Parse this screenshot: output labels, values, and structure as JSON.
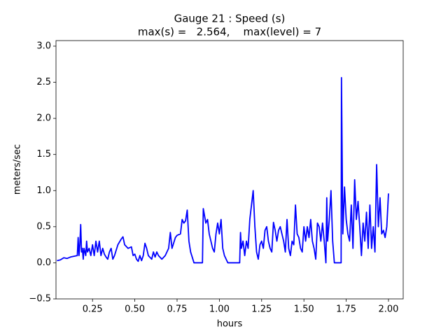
{
  "chart_data": {
    "type": "line",
    "title": "Gauge 21 : Speed (s)",
    "subtitle": "max(s) =   2.564,    max(level) = 7",
    "x_label": "hours",
    "y_label": "meters/sec",
    "color": "#0000ff",
    "xlim": [
      0.034,
      2.087
    ],
    "ylim": [
      -0.5,
      3.077
    ],
    "xticks": [
      0.25,
      {
        "value": 0.5,
        "label": "0.50"
      },
      0.75,
      {
        "value": 1.0,
        "label": "1.00"
      },
      1.25,
      {
        "value": 1.5,
        "label": "1.50"
      },
      1.75,
      {
        "value": 2.0,
        "label": "2.00"
      }
    ],
    "yticks": [
      {
        "value": -0.5,
        "label": "−0.5"
      },
      {
        "value": 0,
        "label": "0.0"
      },
      0.5,
      {
        "value": 1,
        "label": "1.0"
      },
      1.5,
      {
        "value": 2,
        "label": "2.0"
      },
      2.5,
      {
        "value": 3,
        "label": "3.0"
      }
    ],
    "x": [
      0.04,
      0.06,
      0.08,
      0.1,
      0.12,
      0.14,
      0.16,
      0.165,
      0.17,
      0.175,
      0.18,
      0.185,
      0.19,
      0.195,
      0.2,
      0.21,
      0.215,
      0.22,
      0.23,
      0.24,
      0.25,
      0.26,
      0.27,
      0.28,
      0.29,
      0.3,
      0.31,
      0.32,
      0.33,
      0.34,
      0.35,
      0.36,
      0.37,
      0.38,
      0.4,
      0.42,
      0.43,
      0.44,
      0.46,
      0.48,
      0.49,
      0.5,
      0.51,
      0.52,
      0.53,
      0.54,
      0.55,
      0.56,
      0.57,
      0.58,
      0.6,
      0.61,
      0.62,
      0.63,
      0.64,
      0.66,
      0.68,
      0.7,
      0.71,
      0.72,
      0.74,
      0.75,
      0.77,
      0.78,
      0.79,
      0.8,
      0.81,
      0.82,
      0.83,
      0.85,
      0.9,
      0.905,
      0.92,
      0.93,
      0.94,
      0.96,
      0.97,
      0.98,
      0.99,
      1.0,
      1.01,
      1.02,
      1.03,
      1.05,
      1.12,
      1.125,
      1.13,
      1.14,
      1.15,
      1.16,
      1.17,
      1.18,
      1.19,
      1.2,
      1.21,
      1.22,
      1.23,
      1.24,
      1.25,
      1.26,
      1.27,
      1.28,
      1.29,
      1.3,
      1.31,
      1.32,
      1.33,
      1.34,
      1.35,
      1.36,
      1.37,
      1.38,
      1.39,
      1.4,
      1.41,
      1.42,
      1.43,
      1.44,
      1.45,
      1.46,
      1.47,
      1.48,
      1.49,
      1.5,
      1.51,
      1.52,
      1.53,
      1.54,
      1.55,
      1.56,
      1.57,
      1.58,
      1.59,
      1.6,
      1.61,
      1.62,
      1.63,
      1.635,
      1.64,
      1.65,
      1.66,
      1.67,
      1.68,
      1.72,
      1.722,
      1.73,
      1.74,
      1.75,
      1.76,
      1.77,
      1.78,
      1.79,
      1.8,
      1.81,
      1.82,
      1.83,
      1.84,
      1.85,
      1.86,
      1.87,
      1.88,
      1.89,
      1.9,
      1.91,
      1.92,
      1.93,
      1.94,
      1.95,
      1.96,
      1.97,
      1.98,
      1.99,
      2.0
    ],
    "values": [
      0.03,
      0.04,
      0.07,
      0.06,
      0.08,
      0.09,
      0.1,
      0.35,
      0.1,
      0.25,
      0.53,
      0.15,
      0.2,
      0.05,
      0.2,
      0.1,
      0.3,
      0.15,
      0.2,
      0.1,
      0.25,
      0.1,
      0.3,
      0.15,
      0.3,
      0.1,
      0.2,
      0.12,
      0.08,
      0.05,
      0.15,
      0.2,
      0.05,
      0.1,
      0.25,
      0.33,
      0.36,
      0.25,
      0.2,
      0.22,
      0.1,
      0.12,
      0.05,
      0.02,
      0.1,
      0.03,
      0.1,
      0.27,
      0.2,
      0.1,
      0.05,
      0.15,
      0.08,
      0.15,
      0.1,
      0.05,
      0.1,
      0.2,
      0.42,
      0.2,
      0.35,
      0.38,
      0.4,
      0.6,
      0.55,
      0.58,
      0.73,
      0.3,
      0.15,
      0,
      0,
      0.75,
      0.55,
      0.6,
      0.4,
      0.2,
      0.15,
      0.4,
      0.55,
      0.4,
      0.6,
      0.2,
      0.1,
      0,
      0,
      0.42,
      0.2,
      0.3,
      0.1,
      0.3,
      0.2,
      0.6,
      0.8,
      1.0,
      0.5,
      0.15,
      0.05,
      0.25,
      0.3,
      0.2,
      0.45,
      0.5,
      0.3,
      0.2,
      0.15,
      0.56,
      0.45,
      0.3,
      0.45,
      0.5,
      0.4,
      0.3,
      0.15,
      0.6,
      0.2,
      0.1,
      0.3,
      0.25,
      0.8,
      0.4,
      0.35,
      0.2,
      0.15,
      0.5,
      0.3,
      0.5,
      0.35,
      0.6,
      0.3,
      0.2,
      0.05,
      0.55,
      0.5,
      0.3,
      0.55,
      0.3,
      0,
      0.9,
      0.3,
      0.6,
      1.0,
      0.3,
      0,
      0,
      2.564,
      0.4,
      1.05,
      0.6,
      0.4,
      0.3,
      0.8,
      0.2,
      1.15,
      0.6,
      0.85,
      0.5,
      0.1,
      0.55,
      0.3,
      0.7,
      0.2,
      0.8,
      0.2,
      0.5,
      0.15,
      1.36,
      0.5,
      0.9,
      0.4,
      0.45,
      0.35,
      0.5,
      0.96
    ]
  }
}
